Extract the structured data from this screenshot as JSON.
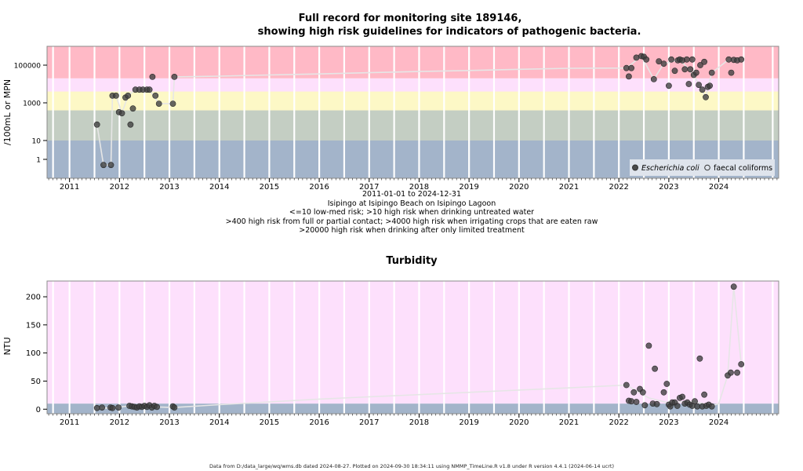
{
  "chart_data": [
    {
      "type": "scatter",
      "title_line1": "Full record for monitoring site 189146,",
      "title_line2": "showing high risk guidelines for indicators of pathogenic bacteria.",
      "ylabel": "/100mL or MPN",
      "y_scale": "log",
      "ylim": [
        0.1,
        1000000
      ],
      "y_ticks": [
        {
          "value": 1,
          "label": "1"
        },
        {
          "value": 10,
          "label": "10"
        },
        {
          "value": 1000,
          "label": "1000"
        },
        {
          "value": 100000,
          "label": "100000"
        }
      ],
      "x_ticks": [
        "2011",
        "2012",
        "2013",
        "2014",
        "2015",
        "2016",
        "2017",
        "2018",
        "2019",
        "2020",
        "2021",
        "2022",
        "2023",
        "2024"
      ],
      "x_range": [
        2010.55,
        2025.2
      ],
      "date_range": "2011-01-01 to 2024-12-31",
      "site_name": "Isipingo at Isipingo Beach on Isipingo Lagoon",
      "risk_notes": [
        "<=10 low-med risk; >10 high risk when drinking untreated water",
        ">400 high risk from full or partial contact; >4000 high risk when irrigating crops that are eaten raw",
        ">20000 high risk when drinking after only limited treatment"
      ],
      "risk_bands": [
        {
          "from": 0.1,
          "to": 10,
          "color": "#a3b4ca"
        },
        {
          "from": 10,
          "to": 400,
          "color": "#c4cec3"
        },
        {
          "from": 400,
          "to": 4000,
          "color": "#fdf8c6"
        },
        {
          "from": 4000,
          "to": 20000,
          "color": "#fde0fc"
        },
        {
          "from": 20000,
          "to": 1000000,
          "color": "#ffb9c6"
        }
      ],
      "legend": [
        {
          "name": "Escherichia coli",
          "marker": "filled-circle",
          "italic": true
        },
        {
          "name": "faecal coliforms",
          "marker": "open-circle",
          "italic": false
        }
      ],
      "legend_position": "bottom-right",
      "series": [
        {
          "name": "Escherichia coli",
          "points": [
            [
              2011.55,
              70
            ],
            [
              2011.68,
              0.5
            ],
            [
              2011.83,
              0.5
            ],
            [
              2011.86,
              2400
            ],
            [
              2011.93,
              2400
            ],
            [
              2011.99,
              320
            ],
            [
              2012.05,
              280
            ],
            [
              2012.12,
              1900
            ],
            [
              2012.17,
              2400
            ],
            [
              2012.22,
              70
            ],
            [
              2012.27,
              500
            ],
            [
              2012.32,
              5000
            ],
            [
              2012.4,
              5000
            ],
            [
              2012.47,
              5000
            ],
            [
              2012.55,
              5000
            ],
            [
              2012.6,
              5000
            ],
            [
              2012.66,
              24000
            ],
            [
              2012.72,
              2400
            ],
            [
              2012.79,
              900
            ],
            [
              2013.07,
              900
            ],
            [
              2013.1,
              24000
            ],
            [
              2022.15,
              70000
            ],
            [
              2022.2,
              25000
            ],
            [
              2022.25,
              70000
            ],
            [
              2022.35,
              250000
            ],
            [
              2022.45,
              300000
            ],
            [
              2022.5,
              280000
            ],
            [
              2022.55,
              200000
            ],
            [
              2022.7,
              18000
            ],
            [
              2022.8,
              160000
            ],
            [
              2022.9,
              120000
            ],
            [
              2023.0,
              8000
            ],
            [
              2023.05,
              200000
            ],
            [
              2023.12,
              50000
            ],
            [
              2023.18,
              180000
            ],
            [
              2023.22,
              200000
            ],
            [
              2023.27,
              180000
            ],
            [
              2023.32,
              60000
            ],
            [
              2023.36,
              200000
            ],
            [
              2023.4,
              10000
            ],
            [
              2023.43,
              60000
            ],
            [
              2023.47,
              200000
            ],
            [
              2023.5,
              30000
            ],
            [
              2023.55,
              40000
            ],
            [
              2023.6,
              9000
            ],
            [
              2023.63,
              100000
            ],
            [
              2023.67,
              5000
            ],
            [
              2023.71,
              150000
            ],
            [
              2023.74,
              2000
            ],
            [
              2023.78,
              7000
            ],
            [
              2023.82,
              8000
            ],
            [
              2023.86,
              40000
            ],
            [
              2024.2,
              200000
            ],
            [
              2024.25,
              40000
            ],
            [
              2024.3,
              190000
            ],
            [
              2024.37,
              180000
            ],
            [
              2024.45,
              200000
            ]
          ]
        },
        {
          "name": "faecal coliforms",
          "points": []
        }
      ],
      "trend": [
        [
          2011.55,
          70
        ],
        [
          2011.68,
          0.5
        ],
        [
          2011.83,
          0.5
        ],
        [
          2011.86,
          2400
        ],
        [
          2011.93,
          2400
        ],
        [
          2012.05,
          280
        ],
        [
          2012.17,
          2400
        ],
        [
          2012.32,
          5000
        ],
        [
          2012.6,
          5000
        ],
        [
          2012.79,
          900
        ],
        [
          2013.07,
          900
        ],
        [
          2013.1,
          24000
        ],
        [
          2014.0,
          26000
        ],
        [
          2015.0,
          30000
        ],
        [
          2016.0,
          34000
        ],
        [
          2017.0,
          40000
        ],
        [
          2018.0,
          46000
        ],
        [
          2019.0,
          52000
        ],
        [
          2020.0,
          60000
        ],
        [
          2021.0,
          68000
        ],
        [
          2022.15,
          70000
        ],
        [
          2022.45,
          300000
        ],
        [
          2022.7,
          18000
        ],
        [
          2022.9,
          120000
        ],
        [
          2023.22,
          200000
        ],
        [
          2023.5,
          30000
        ],
        [
          2023.74,
          2000
        ],
        [
          2023.86,
          40000
        ],
        [
          2024.2,
          200000
        ],
        [
          2024.45,
          200000
        ]
      ]
    },
    {
      "type": "scatter",
      "title": "Turbidity",
      "ylabel": "NTU",
      "ylim": [
        -8,
        228
      ],
      "y_ticks": [
        0,
        50,
        100,
        150,
        200
      ],
      "x_ticks": [
        "2011",
        "2012",
        "2013",
        "2014",
        "2015",
        "2016",
        "2017",
        "2018",
        "2019",
        "2020",
        "2021",
        "2022",
        "2023",
        "2024"
      ],
      "x_range": [
        2010.55,
        2025.2
      ],
      "risk_bands": [
        {
          "from": -8,
          "to": 10,
          "color": "#a3b4ca"
        },
        {
          "from": 10,
          "to": 228,
          "color": "#fde0fc"
        }
      ],
      "series": [
        {
          "name": "Turbidity",
          "points": [
            [
              2011.55,
              2
            ],
            [
              2011.65,
              3
            ],
            [
              2011.82,
              3
            ],
            [
              2011.86,
              2
            ],
            [
              2011.98,
              3
            ],
            [
              2012.2,
              6
            ],
            [
              2012.25,
              5
            ],
            [
              2012.3,
              4
            ],
            [
              2012.35,
              3
            ],
            [
              2012.4,
              5
            ],
            [
              2012.45,
              4
            ],
            [
              2012.5,
              6
            ],
            [
              2012.55,
              4
            ],
            [
              2012.6,
              7
            ],
            [
              2012.65,
              3
            ],
            [
              2012.7,
              6
            ],
            [
              2012.75,
              4
            ],
            [
              2013.07,
              5
            ],
            [
              2013.1,
              3
            ],
            [
              2022.15,
              43
            ],
            [
              2022.2,
              15
            ],
            [
              2022.25,
              14
            ],
            [
              2022.3,
              30
            ],
            [
              2022.35,
              13
            ],
            [
              2022.42,
              36
            ],
            [
              2022.48,
              30
            ],
            [
              2022.52,
              7
            ],
            [
              2022.6,
              113
            ],
            [
              2022.68,
              10
            ],
            [
              2022.72,
              72
            ],
            [
              2022.76,
              9
            ],
            [
              2022.9,
              30
            ],
            [
              2022.96,
              45
            ],
            [
              2023.0,
              8
            ],
            [
              2023.03,
              5
            ],
            [
              2023.07,
              12
            ],
            [
              2023.12,
              12
            ],
            [
              2023.17,
              6
            ],
            [
              2023.22,
              20
            ],
            [
              2023.27,
              22
            ],
            [
              2023.32,
              10
            ],
            [
              2023.37,
              12
            ],
            [
              2023.42,
              8
            ],
            [
              2023.47,
              6
            ],
            [
              2023.52,
              14
            ],
            [
              2023.57,
              5
            ],
            [
              2023.62,
              90
            ],
            [
              2023.67,
              5
            ],
            [
              2023.71,
              26
            ],
            [
              2023.75,
              6
            ],
            [
              2023.8,
              8
            ],
            [
              2023.86,
              5
            ],
            [
              2024.18,
              60
            ],
            [
              2024.24,
              65
            ],
            [
              2024.3,
              218
            ],
            [
              2024.37,
              65
            ],
            [
              2024.45,
              80
            ]
          ]
        }
      ],
      "trend": [
        [
          2011.55,
          2
        ],
        [
          2011.86,
          2
        ],
        [
          2012.2,
          6
        ],
        [
          2012.75,
          4
        ],
        [
          2013.1,
          3
        ],
        [
          2014.0,
          8
        ],
        [
          2015.0,
          13
        ],
        [
          2016.0,
          18
        ],
        [
          2017.0,
          22
        ],
        [
          2018.0,
          26
        ],
        [
          2019.0,
          30
        ],
        [
          2020.0,
          34
        ],
        [
          2021.0,
          38
        ],
        [
          2022.15,
          43
        ],
        [
          2022.6,
          20
        ],
        [
          2022.96,
          12
        ],
        [
          2023.5,
          14
        ],
        [
          2023.86,
          6
        ],
        [
          2024.0,
          10
        ],
        [
          2024.18,
          60
        ],
        [
          2024.3,
          218
        ],
        [
          2024.45,
          80
        ]
      ]
    }
  ],
  "footer": "Data from D:/data_large/wq/wms.db dated 2024-08-27. Plotted on 2024-09-30 18:34:11 using NMMP_TimeLine.R v1.8 under R version 4.4.1 (2024-06-14 ucrt)"
}
